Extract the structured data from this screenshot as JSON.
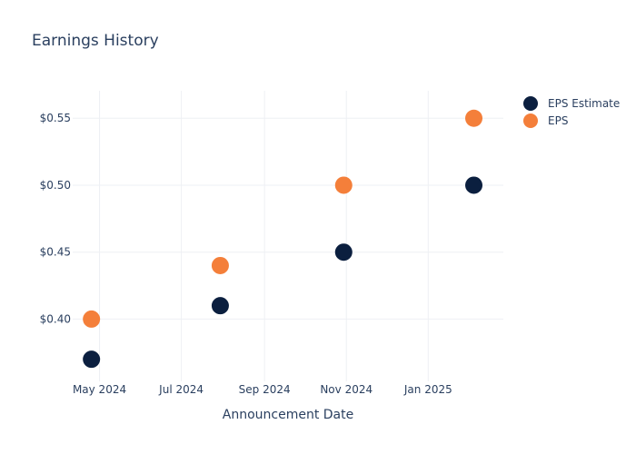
{
  "chart_data": {
    "type": "scatter",
    "title": "Earnings History",
    "xlabel": "Announcement Date",
    "ylabel": "",
    "x_tick_labels": [
      "May 2024",
      "Jul 2024",
      "Sep 2024",
      "Nov 2024",
      "Jan 2025"
    ],
    "x_ticks": [
      "2024-05-01",
      "2024-07-01",
      "2024-09-01",
      "2024-11-01",
      "2025-01-01"
    ],
    "xlim": [
      "2024-04-11",
      "2025-02-26"
    ],
    "y_tick_labels": [
      "$0.40",
      "$0.45",
      "$0.50",
      "$0.55"
    ],
    "y_ticks": [
      0.4,
      0.45,
      0.5,
      0.55
    ],
    "ylim": [
      0.3535,
      0.5705
    ],
    "grid": true,
    "legend_position": "top-right",
    "x": [
      "2024-04-25",
      "2024-07-30",
      "2024-10-30",
      "2025-02-04"
    ],
    "series": [
      {
        "name": "EPS Estimate",
        "color": "#0b1f3f",
        "values": [
          0.37,
          0.41,
          0.45,
          0.5
        ]
      },
      {
        "name": "EPS",
        "color": "#f47f3a",
        "values": [
          0.4,
          0.44,
          0.5,
          0.55
        ]
      }
    ]
  }
}
